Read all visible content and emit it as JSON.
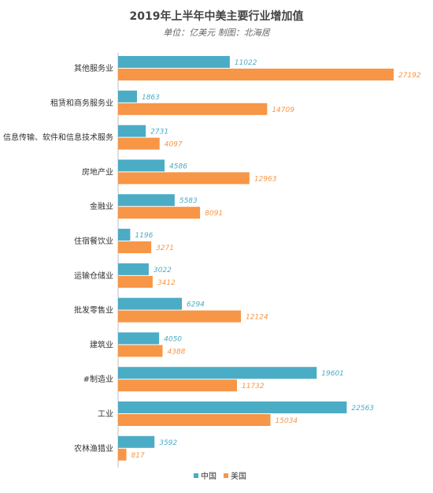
{
  "title": "2019年上半年中美主要行业增加值",
  "subtitle": "单位：亿美元 制图：北海居",
  "colors": {
    "china": "#4bacc6",
    "usa": "#f79646",
    "axis": "#bfbfbf",
    "label": "#333333"
  },
  "chart_data": {
    "type": "bar",
    "orientation": "horizontal",
    "title": "2019年上半年中美主要行业增加值",
    "subtitle": "单位：亿美元 制图：北海居",
    "categories": [
      "其他服务业",
      "租赁和商务服务业",
      "信息传输、软件和信息技术服务",
      "房地产业",
      "金融业",
      "住宿餐饮业",
      "运输仓储业",
      "批发零售业",
      "建筑业",
      "#制造业",
      "工业",
      "农林渔猎业"
    ],
    "series": [
      {
        "name": "中国",
        "color": "#4bacc6",
        "values": [
          11022,
          1863,
          2731,
          4586,
          5583,
          1196,
          3022,
          6294,
          4050,
          19601,
          22563,
          3592
        ]
      },
      {
        "name": "美国",
        "color": "#f79646",
        "values": [
          27192,
          14709,
          4097,
          12963,
          8091,
          3271,
          3412,
          12124,
          4388,
          11732,
          15034,
          817
        ]
      }
    ],
    "xlim": [
      0,
      28000
    ],
    "legend_position": "bottom",
    "grid": false,
    "data_labels": true
  }
}
